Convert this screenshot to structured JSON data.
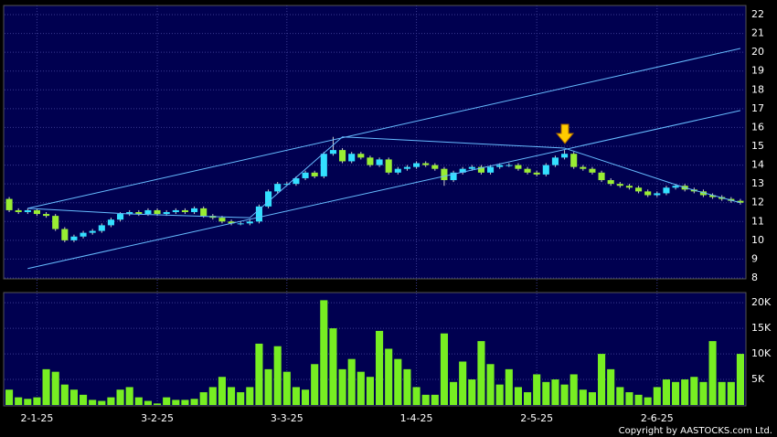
{
  "chart_data": [
    {
      "type": "candlestick",
      "up_color": "#33e0ff",
      "down_color": "#99ee33",
      "line_color": "#66bbff",
      "open": [
        12.2,
        11.6,
        11.5,
        11.6,
        11.4,
        11.3,
        10.6,
        10.0,
        10.2,
        10.4,
        10.5,
        10.8,
        11.1,
        11.4,
        11.5,
        11.4,
        11.6,
        11.4,
        11.5,
        11.6,
        11.5,
        11.7,
        11.3,
        11.2,
        11.0,
        10.9,
        10.9,
        11.0,
        11.8,
        12.6,
        13.0,
        13.0,
        13.3,
        13.6,
        13.4,
        14.6,
        14.8,
        14.2,
        14.6,
        14.4,
        14.0,
        14.3,
        13.6,
        13.8,
        13.9,
        14.1,
        14.0,
        13.8,
        13.2,
        13.6,
        13.8,
        13.9,
        13.6,
        13.9,
        14.0,
        14.0,
        13.8,
        13.6,
        13.5,
        14.0,
        14.4,
        14.6,
        13.9,
        13.8,
        13.6,
        13.2,
        13.0,
        12.9,
        12.8,
        12.6,
        12.4,
        12.5,
        12.8,
        12.9,
        12.7,
        12.6,
        12.4,
        12.3,
        12.2,
        12.1
      ],
      "close": [
        11.6,
        11.5,
        11.6,
        11.4,
        11.3,
        10.6,
        10.0,
        10.2,
        10.4,
        10.5,
        10.8,
        11.1,
        11.4,
        11.5,
        11.4,
        11.6,
        11.4,
        11.5,
        11.6,
        11.5,
        11.7,
        11.3,
        11.2,
        11.0,
        10.9,
        10.9,
        11.0,
        11.8,
        12.6,
        13.0,
        13.0,
        13.3,
        13.6,
        13.4,
        14.6,
        14.8,
        14.2,
        14.6,
        14.4,
        14.0,
        14.3,
        13.6,
        13.8,
        13.9,
        14.1,
        14.0,
        13.8,
        13.2,
        13.6,
        13.8,
        13.9,
        13.6,
        13.9,
        14.0,
        14.0,
        13.8,
        13.6,
        13.5,
        14.0,
        14.4,
        14.6,
        13.9,
        13.8,
        13.6,
        13.2,
        13.0,
        12.9,
        12.8,
        12.6,
        12.4,
        12.5,
        12.8,
        12.9,
        12.7,
        12.6,
        12.4,
        12.3,
        12.2,
        12.1,
        12.0
      ],
      "high": [
        12.3,
        11.7,
        11.7,
        11.7,
        11.5,
        11.4,
        10.7,
        10.3,
        10.5,
        10.6,
        10.9,
        11.2,
        11.5,
        11.6,
        11.6,
        11.7,
        11.7,
        11.6,
        11.7,
        11.7,
        11.8,
        11.8,
        11.4,
        11.3,
        11.1,
        11.0,
        11.1,
        11.9,
        12.7,
        13.1,
        13.1,
        13.4,
        13.7,
        13.7,
        14.7,
        15.5,
        14.9,
        14.7,
        14.7,
        14.5,
        14.4,
        14.4,
        13.9,
        14.0,
        14.2,
        14.2,
        14.1,
        13.9,
        13.7,
        13.9,
        14.0,
        14.0,
        14.0,
        14.1,
        14.1,
        14.1,
        13.9,
        13.7,
        14.1,
        14.5,
        14.8,
        14.7,
        14.0,
        13.9,
        13.7,
        13.3,
        13.1,
        13.0,
        12.9,
        12.7,
        12.6,
        12.9,
        13.0,
        13.0,
        12.8,
        12.7,
        12.5,
        12.4,
        12.3,
        12.2
      ],
      "low": [
        11.5,
        11.4,
        11.4,
        11.3,
        11.2,
        10.5,
        9.9,
        9.9,
        10.1,
        10.3,
        10.4,
        10.7,
        11.0,
        11.3,
        11.3,
        11.3,
        11.3,
        11.3,
        11.4,
        11.4,
        11.4,
        11.2,
        11.1,
        10.9,
        10.8,
        10.8,
        10.8,
        10.9,
        11.7,
        12.5,
        12.9,
        12.9,
        13.2,
        13.3,
        13.3,
        14.5,
        14.1,
        14.1,
        14.3,
        13.9,
        13.9,
        13.5,
        13.5,
        13.7,
        13.8,
        13.9,
        13.7,
        12.9,
        13.1,
        13.5,
        13.7,
        13.5,
        13.5,
        13.8,
        13.9,
        13.7,
        13.5,
        13.4,
        13.4,
        13.9,
        14.3,
        13.8,
        13.7,
        13.5,
        13.1,
        12.9,
        12.8,
        12.7,
        12.5,
        12.3,
        12.3,
        12.4,
        12.7,
        12.6,
        12.5,
        12.3,
        12.2,
        12.1,
        12.0,
        11.9
      ],
      "trendlines": [
        {
          "x": [
            2,
            79
          ],
          "y": [
            11.7,
            20.2
          ]
        },
        {
          "x": [
            2,
            79
          ],
          "y": [
            8.5,
            16.9
          ]
        },
        {
          "x": [
            2,
            13,
            26,
            36,
            60,
            73,
            79
          ],
          "y": [
            11.7,
            11.4,
            11.2,
            15.5,
            14.9,
            12.8,
            12.0
          ]
        }
      ],
      "ylim": [
        8,
        22
      ],
      "yticks": [
        8,
        9,
        10,
        11,
        12,
        13,
        14,
        15,
        16,
        17,
        18,
        19,
        20,
        21,
        22
      ],
      "grid": true
    },
    {
      "type": "bar",
      "color": "#77ee22",
      "values": [
        3000,
        1500,
        1200,
        1500,
        7000,
        6500,
        4000,
        3000,
        2000,
        1000,
        800,
        1500,
        3000,
        3500,
        1500,
        800,
        300,
        1500,
        1000,
        1000,
        1200,
        2500,
        3500,
        5500,
        3500,
        2500,
        3500,
        12000,
        7000,
        11500,
        6500,
        3500,
        3000,
        8000,
        20500,
        15000,
        7000,
        9000,
        6500,
        5500,
        14500,
        11000,
        9000,
        7000,
        3500,
        2000,
        2000,
        14000,
        4500,
        8500,
        5000,
        12500,
        8000,
        4000,
        7000,
        3500,
        2500,
        6000,
        4500,
        5000,
        4000,
        6000,
        3000,
        2500,
        10000,
        7000,
        3500,
        2500,
        2000,
        1500,
        3500,
        5000,
        4500,
        5000,
        5500,
        4500,
        12500,
        4500,
        4500,
        10000
      ],
      "ylim": [
        0,
        22000
      ],
      "yticks": [
        {
          "value": 5000,
          "label": "5K"
        },
        {
          "value": 10000,
          "label": "10K"
        },
        {
          "value": 15000,
          "label": "15K"
        },
        {
          "value": 20000,
          "label": "20K"
        }
      ],
      "xticks": [
        {
          "value": 3,
          "label": "2-1-25"
        },
        {
          "value": 16,
          "label": "3-2-25"
        },
        {
          "value": 30,
          "label": "3-3-25"
        },
        {
          "value": 44,
          "label": "1-4-25"
        },
        {
          "value": 57,
          "label": "2-5-25"
        },
        {
          "value": 70,
          "label": "2-6-25"
        }
      ],
      "grid": true
    }
  ],
  "copyright": "Copyright by AASTOCKS.com Ltd."
}
